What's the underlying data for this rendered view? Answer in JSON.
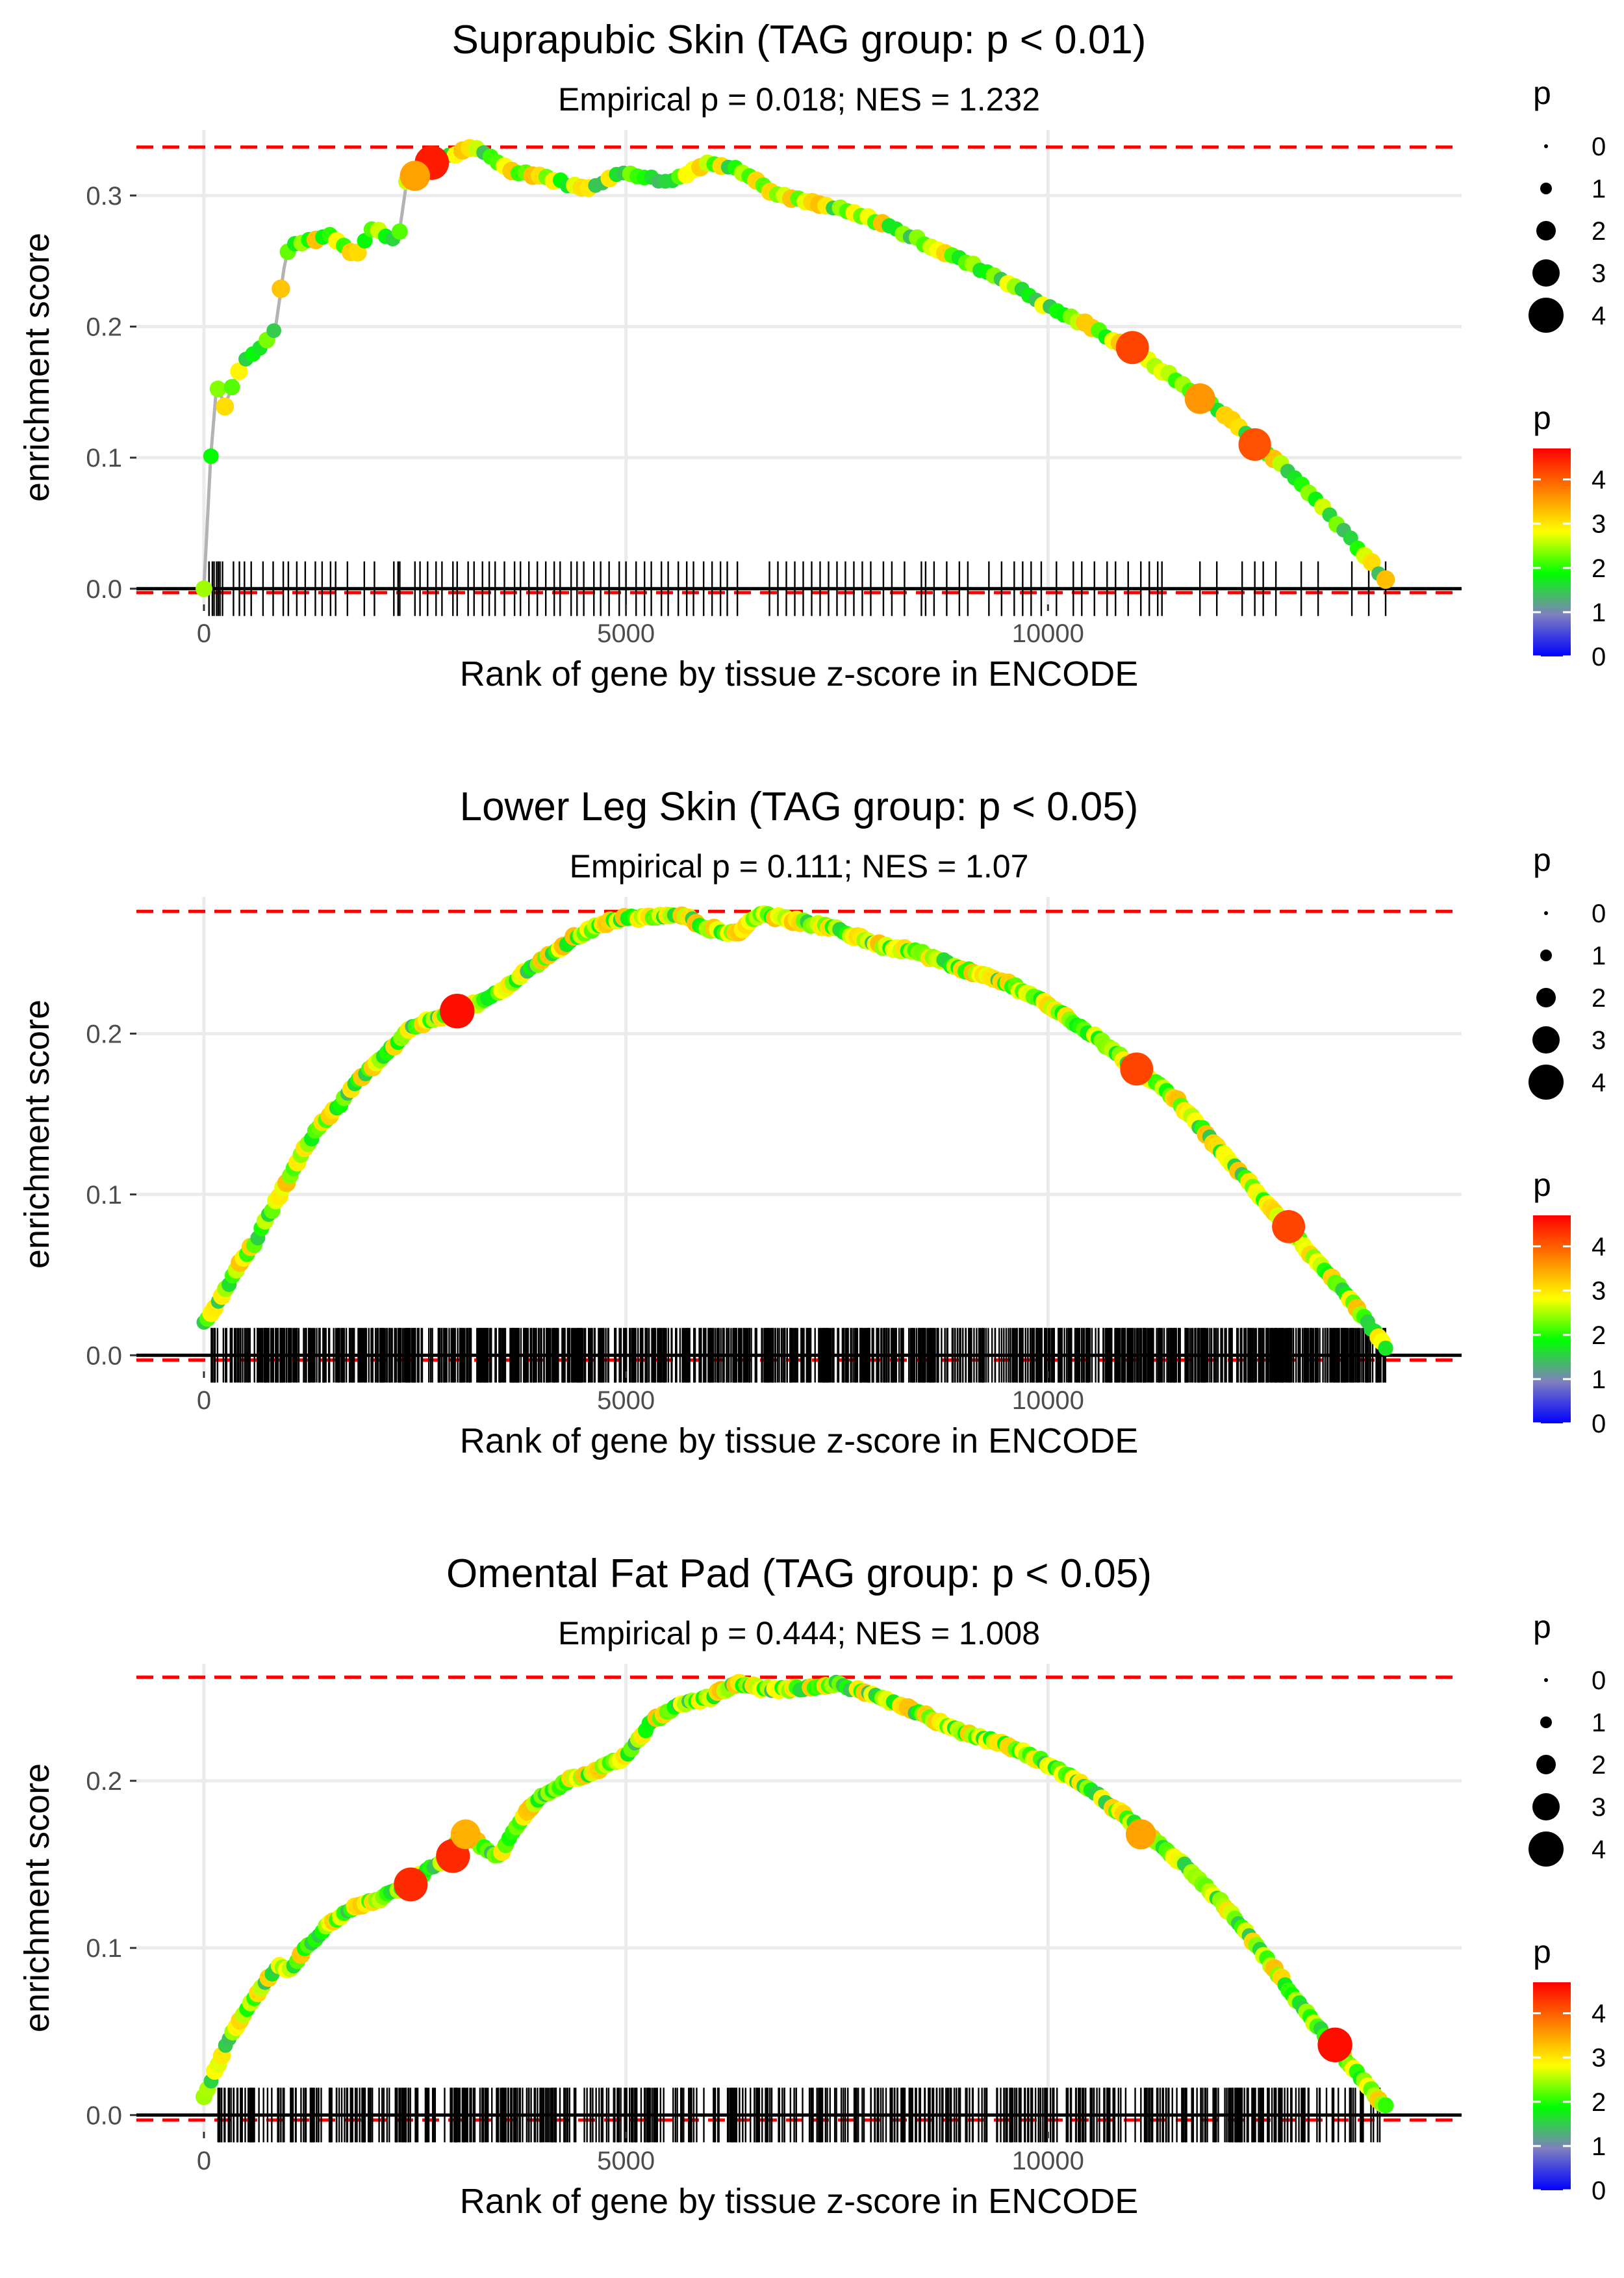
{
  "chart_data": [
    {
      "type": "scatter",
      "title": "Suprapubic Skin (TAG group: p < 0.01)",
      "subtitle": "Empirical p = 0.018; NES = 1.232",
      "xlabel": "Rank of gene by tissue z-score in ENCODE",
      "ylabel": "enrichment score",
      "xlim": [
        -800,
        14900
      ],
      "ylim": [
        -0.012,
        0.35
      ],
      "xticks": [
        0,
        5000,
        10000
      ],
      "xtick_labels": [
        "0",
        "5000",
        "10000"
      ],
      "yticks": [
        0.0,
        0.1,
        0.2,
        0.3
      ],
      "ytick_labels": [
        "0.0",
        "0.1",
        "0.2",
        "0.3"
      ],
      "max_es": 0.337,
      "min_es": -0.003,
      "curve": {
        "x": [
          0,
          80,
          150,
          250,
          400,
          500,
          700,
          850,
          950,
          1000,
          1200,
          1500,
          1800,
          2000,
          2300,
          2400,
          2500,
          2700,
          2900,
          3200,
          3400,
          3600,
          4000,
          4500,
          5000,
          5500,
          5800,
          6000,
          6300,
          6800,
          7500,
          8000,
          8500,
          9000,
          9500,
          10000,
          10500,
          11000,
          11500,
          12000,
          12500,
          13000,
          13500,
          14000
        ],
        "y": [
          0.0,
          0.1,
          0.155,
          0.14,
          0.165,
          0.175,
          0.185,
          0.2,
          0.245,
          0.26,
          0.265,
          0.27,
          0.255,
          0.275,
          0.265,
          0.31,
          0.32,
          0.325,
          0.33,
          0.336,
          0.33,
          0.32,
          0.315,
          0.305,
          0.318,
          0.31,
          0.32,
          0.325,
          0.322,
          0.3,
          0.29,
          0.28,
          0.265,
          0.25,
          0.235,
          0.215,
          0.2,
          0.182,
          0.16,
          0.138,
          0.11,
          0.08,
          0.045,
          0.006
        ]
      },
      "highlights": [
        {
          "x": 2700,
          "y": 0.325,
          "p": 4.5
        },
        {
          "x": 2500,
          "y": 0.315,
          "p": 3.5
        },
        {
          "x": 11000,
          "y": 0.184,
          "p": 4.2
        },
        {
          "x": 11800,
          "y": 0.145,
          "p": 3.6
        },
        {
          "x": 12450,
          "y": 0.11,
          "p": 4.1
        }
      ],
      "rug_x": [
        60,
        100,
        120,
        150,
        170,
        190,
        220,
        350,
        420,
        480,
        560,
        700,
        820,
        940,
        1000,
        1100,
        1200,
        1320,
        1400,
        1500,
        1560,
        1700,
        1900,
        2020,
        2250,
        2300,
        2320,
        2500,
        2560,
        2650,
        2750,
        2820,
        2950,
        3000,
        3130,
        3200,
        3300,
        3380,
        3450,
        3560,
        3680,
        3750,
        3850,
        3950,
        4050,
        4150,
        4220,
        4350,
        4420,
        4500,
        4620,
        4700,
        4800,
        4920,
        5000,
        5120,
        5220,
        5300,
        5420,
        5500,
        5620,
        5720,
        5800,
        5920,
        6020,
        6120,
        6200,
        6320,
        6700,
        6800,
        6900,
        7000,
        7100,
        7200,
        7300,
        7400,
        7500,
        7600,
        7700,
        7800,
        7900,
        8050,
        8150,
        8300,
        8500,
        8550,
        8650,
        8800,
        8950,
        9050,
        9300,
        9450,
        9600,
        9700,
        9800,
        9920,
        10100,
        10300,
        10400,
        10550,
        10700,
        10800,
        10950,
        11100,
        11200,
        11300,
        11350,
        11800,
        12000,
        12300,
        12450,
        12550,
        12700,
        13000,
        13200,
        13600,
        13800,
        14000
      ]
    },
    {
      "type": "scatter",
      "title": "Lower Leg Skin (TAG group: p < 0.05)",
      "subtitle": "Empirical p = 0.111; NES = 1.07",
      "xlabel": "Rank of gene by tissue z-score in ENCODE",
      "ylabel": "enrichment score",
      "xlim": [
        -800,
        14900
      ],
      "ylim": [
        -0.01,
        0.285
      ],
      "xticks": [
        0,
        5000,
        10000
      ],
      "xtick_labels": [
        "0",
        "5000",
        "10000"
      ],
      "yticks": [
        0.0,
        0.1,
        0.2
      ],
      "ytick_labels": [
        "0.0",
        "0.1",
        "0.2"
      ],
      "max_es": 0.276,
      "min_es": -0.003,
      "curve": {
        "x": [
          0,
          200,
          400,
          600,
          800,
          1000,
          1200,
          1400,
          1600,
          1800,
          2000,
          2200,
          2500,
          2800,
          3000,
          3300,
          3600,
          4000,
          4400,
          4800,
          5000,
          5300,
          5600,
          6000,
          6300,
          6600,
          7000,
          7500,
          8000,
          8500,
          9000,
          9500,
          10000,
          10500,
          11000,
          11500,
          12000,
          12500,
          13000,
          13500,
          14000
        ],
        "y": [
          0.02,
          0.035,
          0.055,
          0.07,
          0.09,
          0.11,
          0.13,
          0.145,
          0.155,
          0.17,
          0.18,
          0.19,
          0.205,
          0.21,
          0.215,
          0.22,
          0.23,
          0.245,
          0.26,
          0.27,
          0.272,
          0.272,
          0.275,
          0.265,
          0.262,
          0.275,
          0.27,
          0.265,
          0.255,
          0.25,
          0.24,
          0.232,
          0.218,
          0.2,
          0.18,
          0.16,
          0.13,
          0.1,
          0.07,
          0.04,
          0.005
        ]
      },
      "highlights": [
        {
          "x": 3000,
          "y": 0.214,
          "p": 4.6
        },
        {
          "x": 11050,
          "y": 0.178,
          "p": 4.2
        },
        {
          "x": 12850,
          "y": 0.08,
          "p": 4.2
        }
      ],
      "rug_density": "dense",
      "rug_range": [
        80,
        14000
      ],
      "rug_count": 1150
    },
    {
      "type": "scatter",
      "title": "Omental Fat Pad (TAG group: p < 0.05)",
      "subtitle": "Empirical p = 0.444; NES = 1.008",
      "xlabel": "Rank of gene by tissue z-score in ENCODE",
      "ylabel": "enrichment score",
      "xlim": [
        -800,
        14900
      ],
      "ylim": [
        -0.01,
        0.27
      ],
      "xticks": [
        0,
        5000,
        10000
      ],
      "xtick_labels": [
        "0",
        "5000",
        "10000"
      ],
      "yticks": [
        0.0,
        0.1,
        0.2
      ],
      "ytick_labels": [
        "0.0",
        "0.1",
        "0.2"
      ],
      "max_es": 0.262,
      "min_es": -0.003,
      "curve": {
        "x": [
          0,
          200,
          400,
          600,
          800,
          900,
          1000,
          1200,
          1500,
          1800,
          2100,
          2400,
          2700,
          2900,
          3000,
          3100,
          3300,
          3500,
          3800,
          4000,
          4300,
          4600,
          5000,
          5300,
          5600,
          6000,
          6300,
          6700,
          7000,
          7500,
          8000,
          8500,
          9000,
          9500,
          10000,
          10500,
          11000,
          11500,
          12000,
          12500,
          13000,
          13500,
          14000
        ],
        "y": [
          0.01,
          0.035,
          0.055,
          0.07,
          0.085,
          0.09,
          0.085,
          0.1,
          0.115,
          0.125,
          0.13,
          0.138,
          0.148,
          0.155,
          0.165,
          0.17,
          0.16,
          0.155,
          0.18,
          0.19,
          0.2,
          0.205,
          0.215,
          0.235,
          0.245,
          0.25,
          0.258,
          0.255,
          0.255,
          0.258,
          0.25,
          0.24,
          0.228,
          0.222,
          0.21,
          0.195,
          0.175,
          0.155,
          0.13,
          0.1,
          0.065,
          0.035,
          0.005
        ]
      },
      "highlights": [
        {
          "x": 2450,
          "y": 0.138,
          "p": 4.4
        },
        {
          "x": 2950,
          "y": 0.155,
          "p": 4.4
        },
        {
          "x": 3100,
          "y": 0.168,
          "p": 3.4
        },
        {
          "x": 11100,
          "y": 0.168,
          "p": 3.5
        },
        {
          "x": 13400,
          "y": 0.042,
          "p": 4.6
        }
      ],
      "rug_density": "medium",
      "rug_range": [
        80,
        14000
      ],
      "rug_count": 620
    }
  ],
  "legend": {
    "size_title": "p",
    "size_labels": [
      "0",
      "1",
      "2",
      "3",
      "4"
    ],
    "color_title": "p",
    "color_labels": [
      "4",
      "3",
      "2",
      "1",
      "0"
    ],
    "color_stops": [
      "#0000ff",
      "#7f7fbf",
      "#00ff00",
      "#ffff00",
      "#ff7f00",
      "#ff0000"
    ]
  },
  "colors": {
    "curve_line": "#b3b3b3",
    "reference_line": "#ff0000",
    "axis_zero": "#000000",
    "grid": "#ebebeb"
  }
}
